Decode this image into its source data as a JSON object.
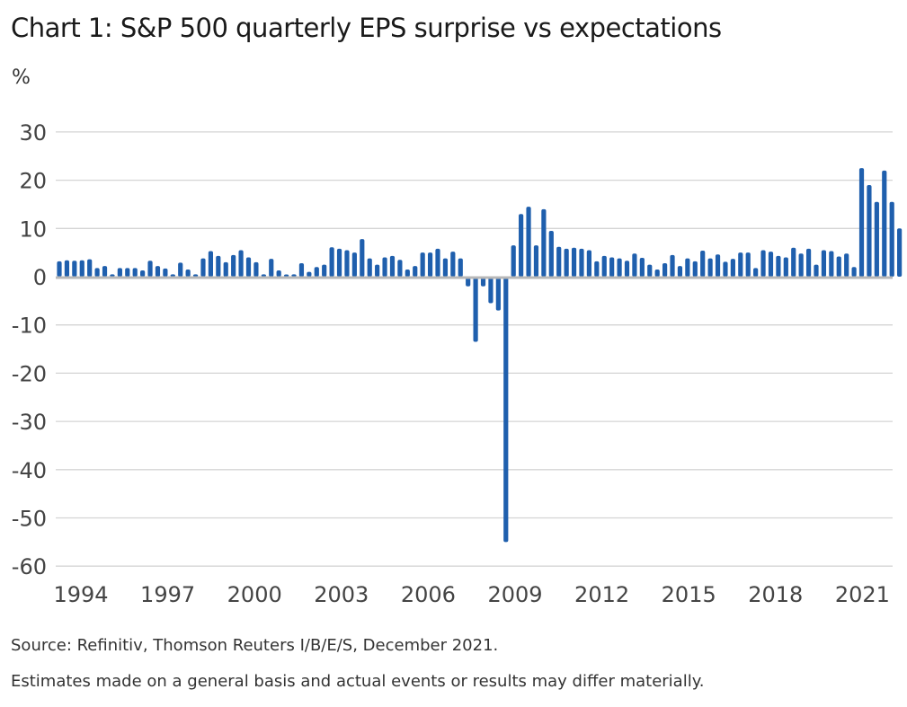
{
  "chart_data": {
    "type": "bar",
    "title": "Chart 1: S&P 500 quarterly EPS surprise vs expectations",
    "ylabel": "%",
    "ylim": [
      -60,
      30
    ],
    "yticks": [
      30,
      20,
      10,
      0,
      -10,
      -20,
      -30,
      -40,
      -50,
      -60
    ],
    "xticks": [
      "1994",
      "1997",
      "2000",
      "2003",
      "2006",
      "2009",
      "2012",
      "2015",
      "2018",
      "2021"
    ],
    "x_start": "1994 Q1",
    "frequency": "quarterly",
    "grid": true,
    "bar_color": "#1f5fad",
    "values": [
      3.2,
      3.4,
      3.3,
      3.4,
      3.6,
      1.8,
      2.2,
      0.5,
      1.8,
      1.8,
      1.8,
      1.3,
      3.3,
      2.2,
      1.7,
      0.5,
      2.9,
      1.5,
      0.5,
      3.8,
      5.3,
      4.3,
      3.0,
      4.5,
      5.5,
      4.0,
      3.0,
      0.5,
      3.7,
      1.3,
      0.4,
      0.5,
      2.8,
      1.0,
      2.0,
      2.5,
      6.1,
      5.8,
      5.5,
      5.0,
      7.8,
      3.8,
      2.5,
      4.0,
      4.3,
      3.5,
      1.5,
      2.2,
      5.0,
      5.0,
      5.8,
      3.8,
      5.2,
      3.8,
      -2.0,
      -13.5,
      -2.0,
      -5.5,
      -7.0,
      -55.0,
      6.5,
      13.0,
      14.5,
      6.5,
      14.0,
      9.5,
      6.2,
      5.8,
      6.0,
      5.8,
      5.5,
      3.2,
      4.3,
      4.0,
      3.8,
      3.3,
      4.8,
      3.9,
      2.5,
      1.5,
      2.8,
      4.5,
      2.2,
      3.8,
      3.2,
      5.4,
      3.8,
      4.6,
      3.1,
      3.7,
      5.0,
      5.0,
      1.8,
      5.5,
      5.2,
      4.3,
      4.0,
      6.0,
      4.8,
      5.8,
      2.5,
      5.5,
      5.3,
      4.2,
      4.8,
      2.0,
      22.5,
      19.0,
      15.5,
      22.0,
      15.5,
      10.0
    ]
  },
  "source": "Source: Refinitiv, Thomson Reuters I/B/E/S, December 2021.",
  "disclaimer": "Estimates made on a general basis and actual events or results may differ materially."
}
